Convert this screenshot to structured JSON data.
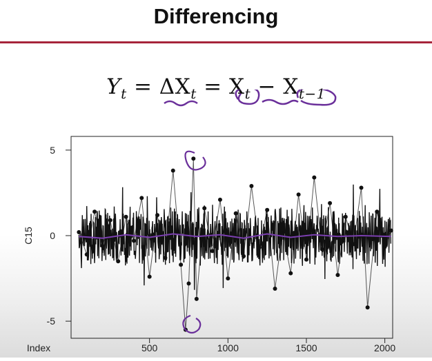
{
  "slide": {
    "title": "Differencing",
    "equation": {
      "lhs": "Y",
      "lhs_sub": "t",
      "eq1": " = ΔX",
      "eq1_sub": "t",
      "eq2": " = X",
      "eq2_sub": "t",
      "minus": " − X",
      "minus_sub": "t−1"
    },
    "accent_color": "#a6243a",
    "annotation_color": "#6a2f9a"
  },
  "chart_data": {
    "type": "line",
    "title": "",
    "xlabel": "Index",
    "ylabel": "C15",
    "xlim": [
      0,
      2050
    ],
    "ylim": [
      -6,
      5.8
    ],
    "xticks": [
      500,
      1000,
      1500,
      2000
    ],
    "yticks": [
      -5,
      0,
      5
    ],
    "markers": true,
    "grid": false,
    "series": [
      {
        "values_note": "",
        "x": [
          50,
          100,
          150,
          200,
          250,
          300,
          350,
          400,
          450,
          500,
          550,
          600,
          650,
          700,
          730,
          750,
          780,
          800,
          850,
          900,
          950,
          1000,
          1050,
          1100,
          1150,
          1200,
          1250,
          1300,
          1350,
          1400,
          1450,
          1500,
          1550,
          1600,
          1650,
          1700,
          1750,
          1800,
          1850,
          1890,
          1950,
          2000,
          2040
        ],
        "y": [
          0.2,
          -1.1,
          1.4,
          -0.6,
          0.9,
          -1.5,
          1.1,
          -0.3,
          2.2,
          -2.4,
          1.2,
          -1.3,
          3.8,
          -1.7,
          -5.5,
          -2.8,
          4.5,
          -3.7,
          1.6,
          -0.9,
          2.1,
          -2.5,
          1.3,
          -1.2,
          2.9,
          -0.7,
          1.5,
          -3.1,
          0.4,
          -2.2,
          2.4,
          -1.4,
          3.4,
          -0.8,
          1.9,
          -2.3,
          1.1,
          -0.5,
          2.8,
          -4.2,
          1.4,
          -0.6,
          0.3
        ]
      },
      {
        "values_note": "",
        "x": [
          50,
          200,
          350,
          500,
          650,
          800,
          950,
          1100,
          1250,
          1400,
          1550,
          1700,
          1850,
          2040
        ],
        "y": [
          -0.05,
          -0.15,
          0.05,
          -0.1,
          0.1,
          -0.05,
          0.05,
          -0.15,
          0.1,
          -0.1,
          0.05,
          -0.05,
          0.0,
          -0.05
        ]
      }
    ]
  }
}
